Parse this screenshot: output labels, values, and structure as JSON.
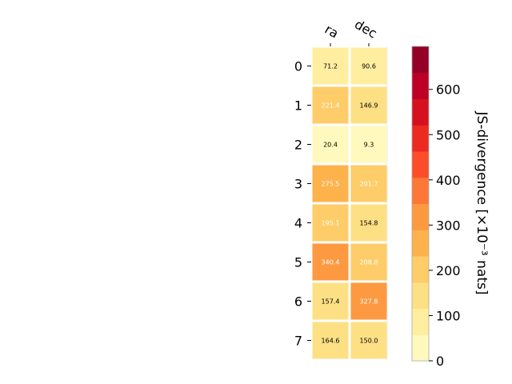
{
  "chart_data": {
    "type": "heatmap",
    "columns": [
      "ra",
      "dec"
    ],
    "rows": [
      "0",
      "1",
      "2",
      "3",
      "4",
      "5",
      "6",
      "7"
    ],
    "values": [
      [
        71.2,
        90.6
      ],
      [
        221.4,
        146.9
      ],
      [
        20.4,
        9.3
      ],
      [
        275.5,
        201.7
      ],
      [
        195.1,
        154.8
      ],
      [
        340.4,
        208.8
      ],
      [
        157.4,
        327.8
      ],
      [
        164.6,
        150.0
      ]
    ],
    "cell_labels": [
      [
        "71.2",
        "90.6"
      ],
      [
        "221.4",
        "146.9"
      ],
      [
        "20.4",
        "9.3"
      ],
      [
        "275.5",
        "201.7"
      ],
      [
        "195.1",
        "154.8"
      ],
      [
        "340.4",
        "208.8"
      ],
      [
        "157.4",
        "327.8"
      ],
      [
        "164.6",
        "150.0"
      ]
    ],
    "colorbar": {
      "label": "JS-divergence [×10⁻³ nats]",
      "range": [
        0,
        695
      ],
      "ticks": [
        0,
        100,
        200,
        300,
        400,
        500,
        600
      ],
      "tick_labels": [
        "0",
        "100",
        "200",
        "300",
        "400",
        "500",
        "600"
      ],
      "colormap": "YlOrRd",
      "bands": 12
    }
  }
}
